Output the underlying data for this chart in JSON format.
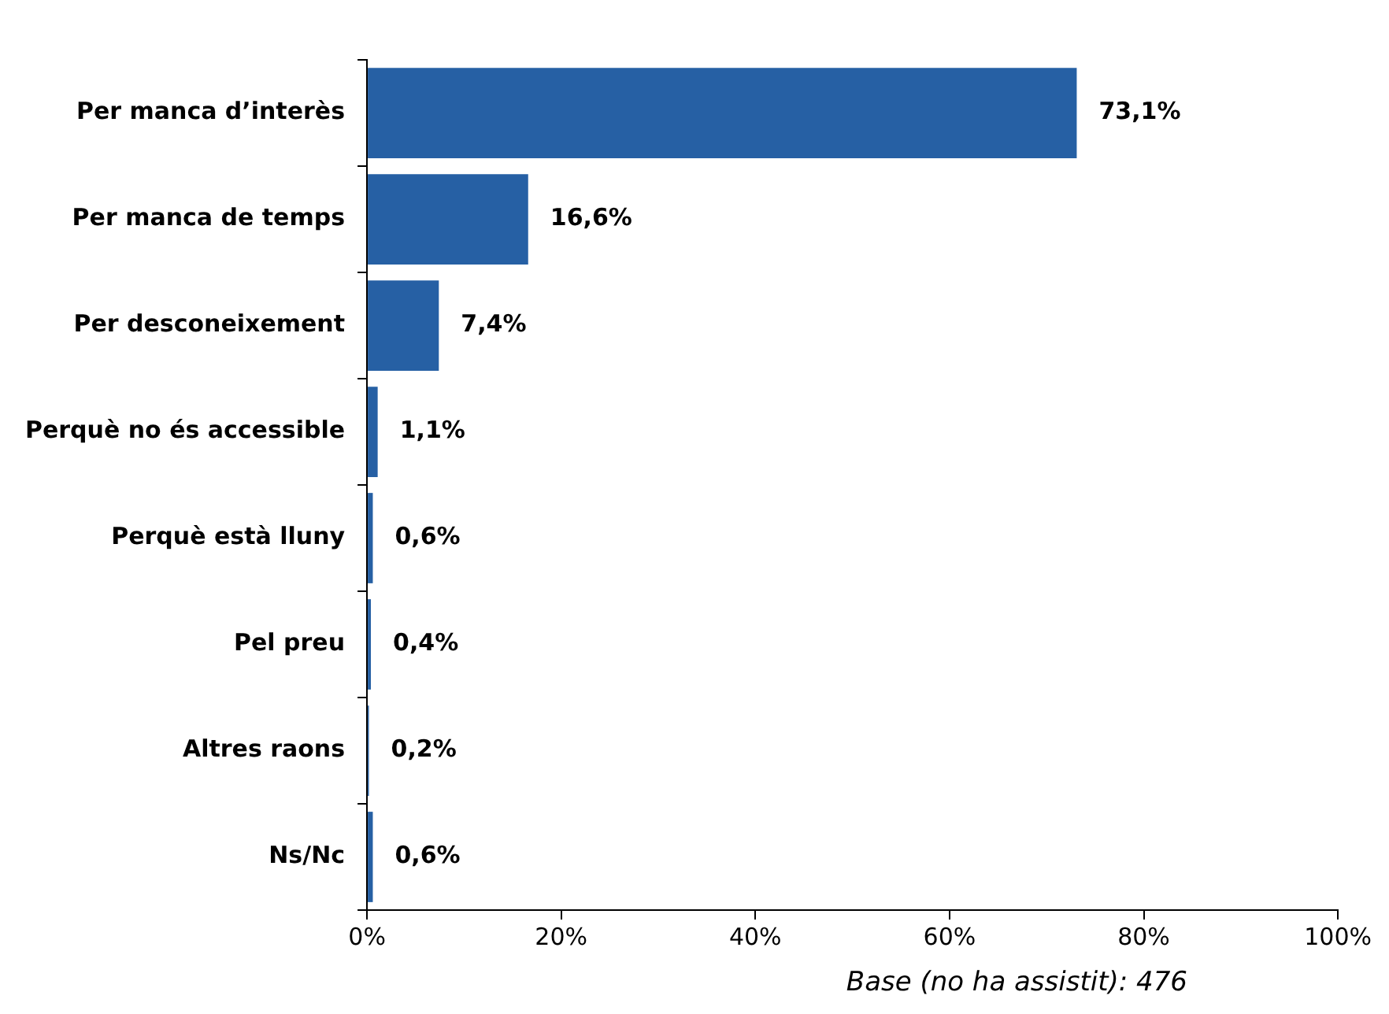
{
  "chart_data": {
    "type": "bar",
    "orientation": "horizontal",
    "categories": [
      "Per manca d’interès",
      "Per manca de temps",
      "Per desconeixement",
      "Perquè no és accessible",
      "Perquè està lluny",
      "Pel preu",
      "Altres raons",
      "Ns/Nc"
    ],
    "values": [
      73.1,
      16.6,
      7.4,
      1.1,
      0.6,
      0.4,
      0.2,
      0.6
    ],
    "value_labels": [
      "73,1%",
      "16,6%",
      "7,4%",
      "1,1%",
      "0,6%",
      "0,4%",
      "0,2%",
      "0,6%"
    ],
    "color": "#2660a4",
    "xlim": [
      0,
      100
    ],
    "xticks": [
      {
        "value": 0,
        "label": "0%"
      },
      {
        "value": 20,
        "label": "20%"
      },
      {
        "value": 40,
        "label": "40%"
      },
      {
        "value": 60,
        "label": "60%"
      },
      {
        "value": 80,
        "label": "80%"
      },
      {
        "value": 100,
        "label": "100%"
      }
    ],
    "grid": false,
    "legend": false,
    "annotations": [
      "Base (no ha assistit): 476"
    ]
  }
}
